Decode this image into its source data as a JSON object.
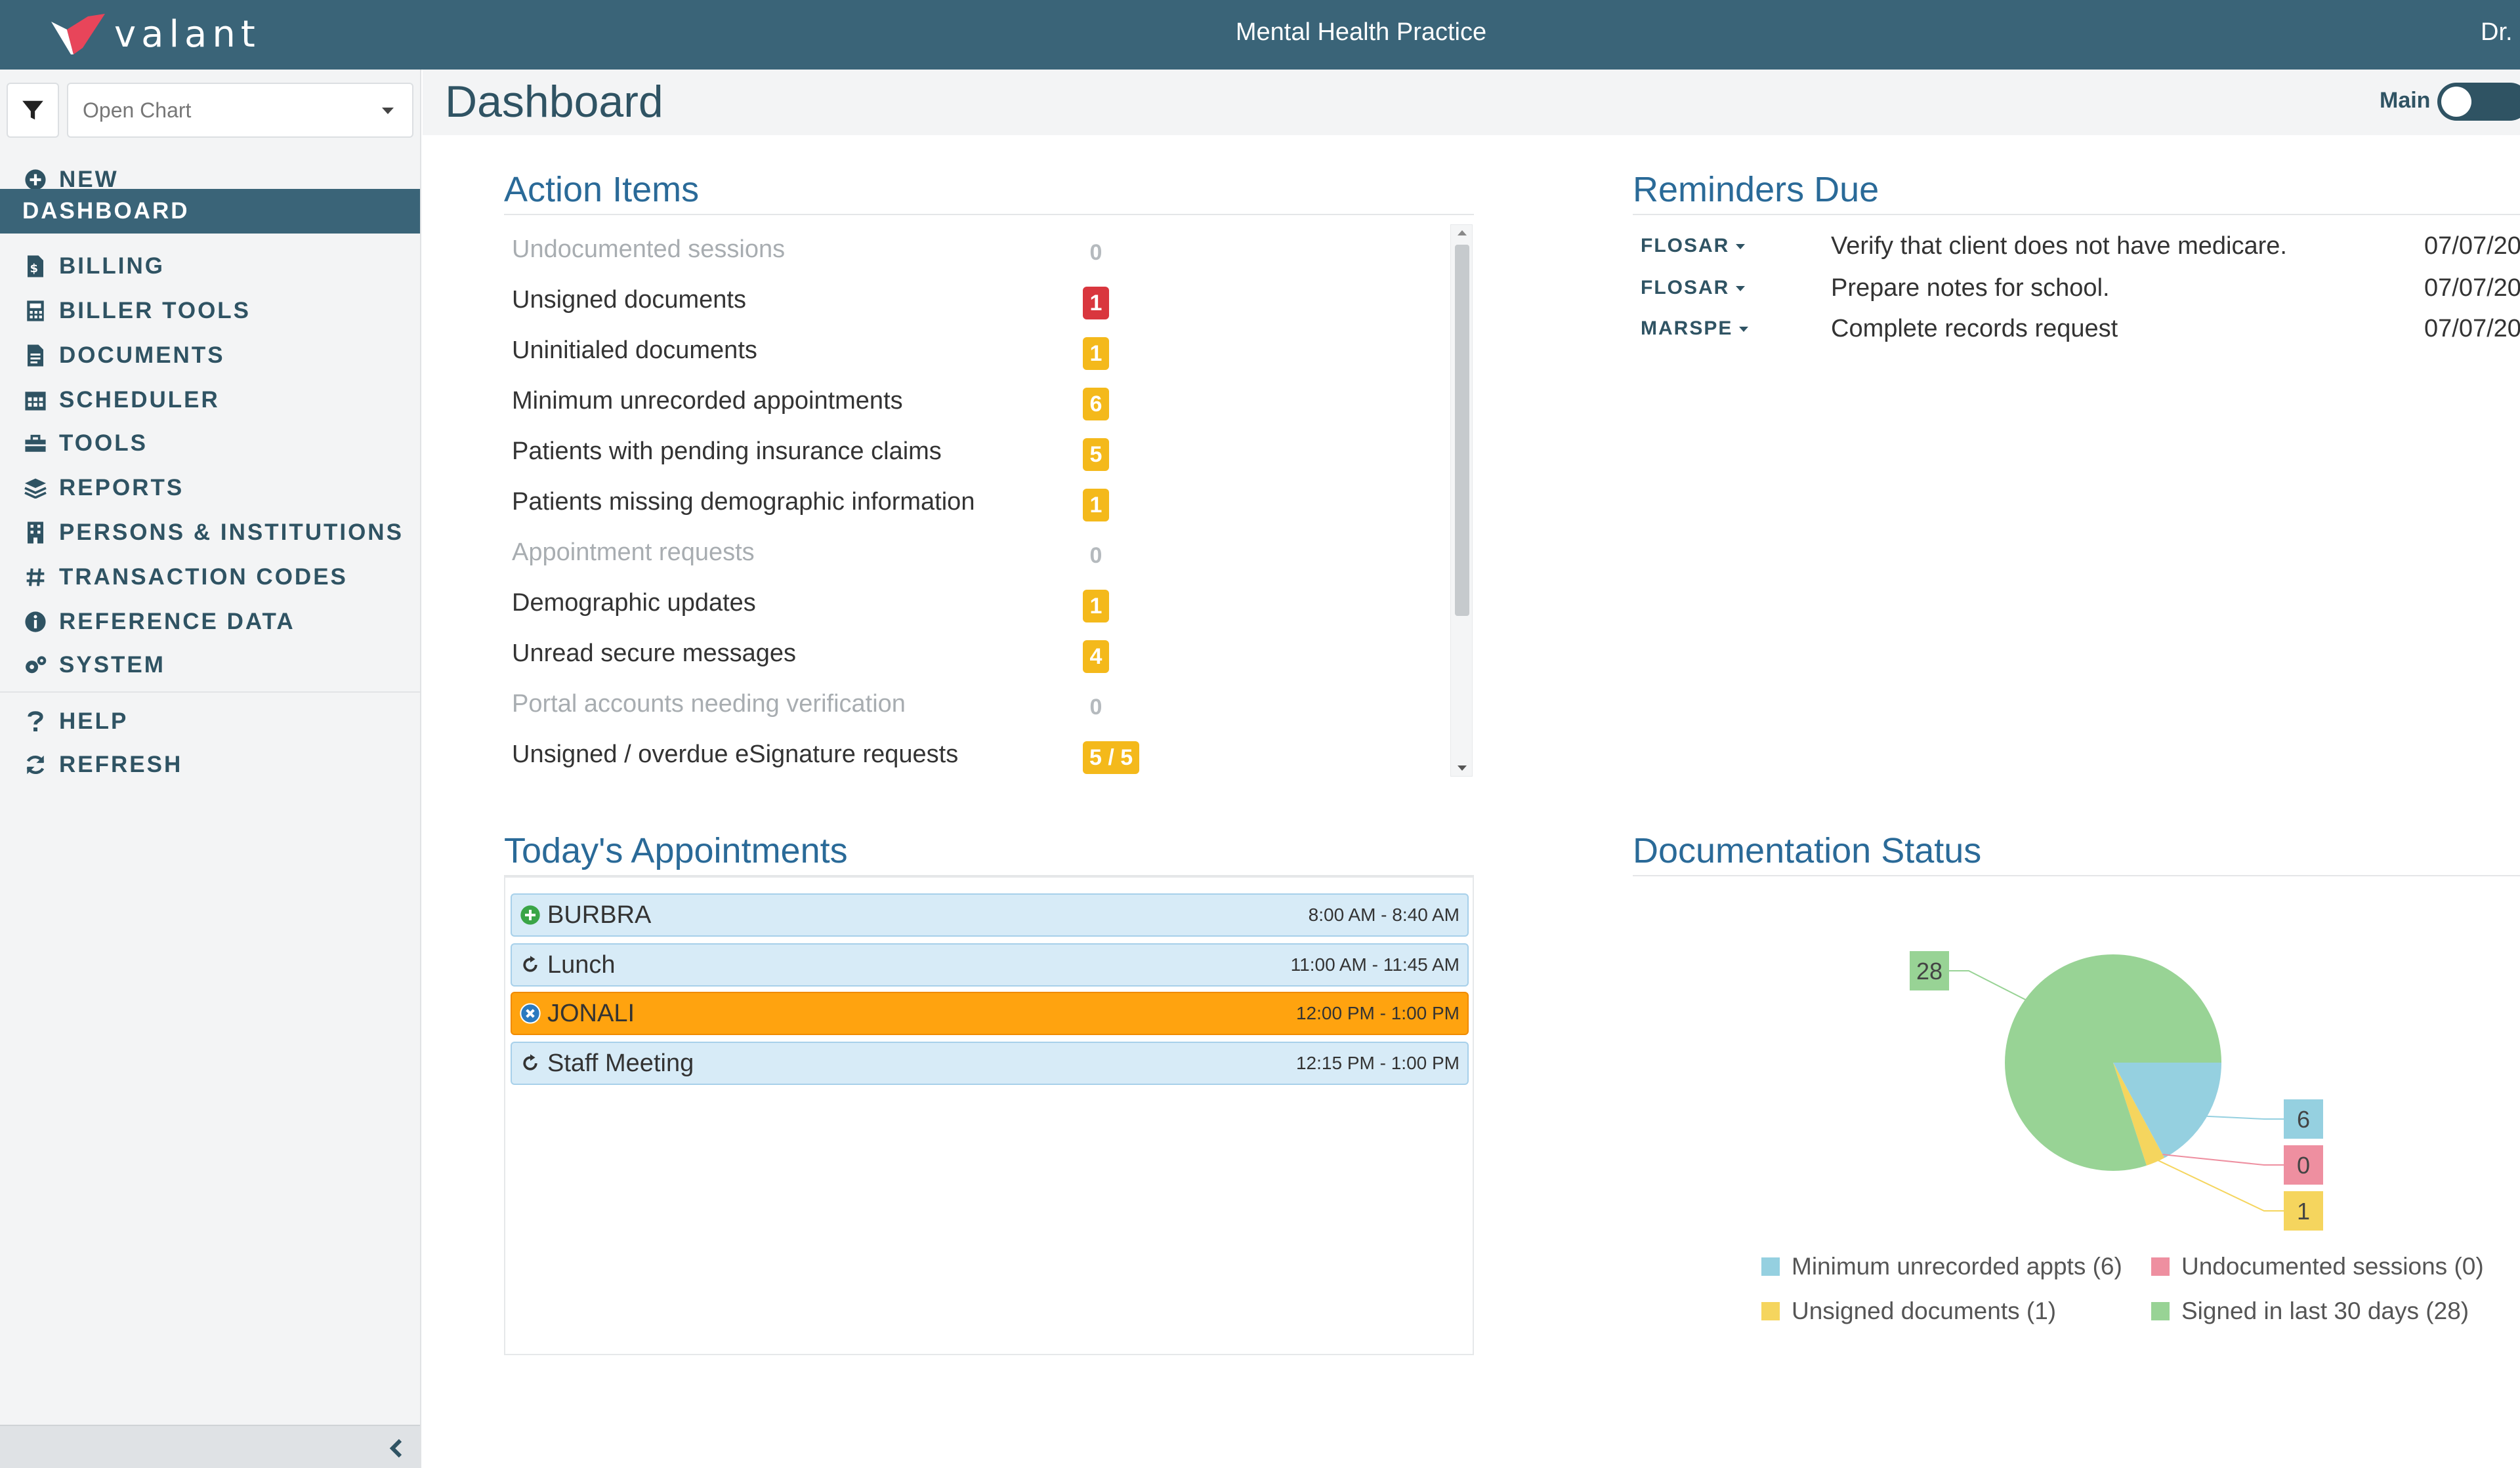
{
  "app": {
    "logo_text": "valant",
    "practice_name": "Mental Health Practice",
    "user_name": "Dr.",
    "colors": {
      "brand": "#3a6478",
      "title_blue": "#2a6a98",
      "red": "#d9363e",
      "yellow": "#f4b91b",
      "orange": "#ffa30f"
    }
  },
  "sidebar": {
    "open_chart_placeholder": "Open Chart",
    "new_label": "NEW",
    "items": [
      {
        "label": "DASHBOARD",
        "icon": "none",
        "active": true
      },
      {
        "label": "BILLING",
        "icon": "file-dollar-icon"
      },
      {
        "label": "BILLER TOOLS",
        "icon": "calculator-icon"
      },
      {
        "label": "DOCUMENTS",
        "icon": "document-icon"
      },
      {
        "label": "SCHEDULER",
        "icon": "calendar-icon"
      },
      {
        "label": "TOOLS",
        "icon": "toolbox-icon"
      },
      {
        "label": "REPORTS",
        "icon": "layers-icon"
      },
      {
        "label": "PERSONS & INSTITUTIONS",
        "icon": "building-icon"
      },
      {
        "label": "TRANSACTION CODES",
        "icon": "hash-icon"
      },
      {
        "label": "REFERENCE DATA",
        "icon": "info-icon"
      },
      {
        "label": "SYSTEM",
        "icon": "gears-icon"
      }
    ],
    "help_label": "HELP",
    "refresh_label": "REFRESH"
  },
  "header": {
    "title": "Dashboard",
    "toggle_label": "Main"
  },
  "action_items": {
    "title": "Action Items",
    "rows": [
      {
        "label": "Undocumented sessions",
        "count": "0",
        "style": "zero"
      },
      {
        "label": "Unsigned documents",
        "count": "1",
        "style": "red"
      },
      {
        "label": "Uninitialed documents",
        "count": "1",
        "style": "yellow"
      },
      {
        "label": "Minimum unrecorded appointments",
        "count": "6",
        "style": "yellow"
      },
      {
        "label": "Patients with pending insurance claims",
        "count": "5",
        "style": "yellow"
      },
      {
        "label": "Patients missing demographic information",
        "count": "1",
        "style": "yellow"
      },
      {
        "label": "Appointment requests",
        "count": "0",
        "style": "zero"
      },
      {
        "label": "Demographic updates",
        "count": "1",
        "style": "yellow"
      },
      {
        "label": "Unread secure messages",
        "count": "4",
        "style": "yellow"
      },
      {
        "label": "Portal accounts needing verification",
        "count": "0",
        "style": "zero"
      },
      {
        "label": "Unsigned / overdue eSignature requests",
        "count": "5 / 5",
        "style": "yellow"
      }
    ]
  },
  "reminders": {
    "title": "Reminders Due",
    "rows": [
      {
        "who": "FLOSAR",
        "text": "Verify that client does not have medicare.",
        "date": "07/07/20"
      },
      {
        "who": "FLOSAR",
        "text": "Prepare notes for school.",
        "date": "07/07/20"
      },
      {
        "who": "MARSPE",
        "text": "Complete records request",
        "date": "07/07/20"
      }
    ]
  },
  "appointments": {
    "title": "Today's Appointments",
    "rows": [
      {
        "name": "BURBRA",
        "time": "8:00 AM - 8:40 AM",
        "icon": "plus-circle-icon",
        "style": "blue"
      },
      {
        "name": "Lunch",
        "time": "11:00 AM - 11:45 AM",
        "icon": "recurring-icon",
        "style": "blue"
      },
      {
        "name": "JONALI",
        "time": "12:00 PM - 1:00 PM",
        "icon": "x-circle-icon",
        "style": "orange"
      },
      {
        "name": "Staff Meeting",
        "time": "12:15 PM - 1:00 PM",
        "icon": "recurring-icon",
        "style": "blue"
      }
    ]
  },
  "chart_data": {
    "type": "pie",
    "title": "Documentation Status",
    "slices": [
      {
        "name": "Minimum unrecorded appts",
        "value": 6,
        "color": "#95d0e0",
        "legend": "Minimum unrecorded appts (6)"
      },
      {
        "name": "Undocumented sessions",
        "value": 0,
        "color": "#ee8fa0",
        "legend": "Undocumented sessions (0)"
      },
      {
        "name": "Unsigned documents",
        "value": 1,
        "color": "#f5d55e",
        "legend": "Unsigned documents (1)"
      },
      {
        "name": "Signed in last 30 days",
        "value": 28,
        "color": "#98d395",
        "legend": "Signed in last 30 days (28)"
      }
    ],
    "data_labels": [
      "28",
      "6",
      "0",
      "1"
    ],
    "legend_position": "bottom"
  }
}
